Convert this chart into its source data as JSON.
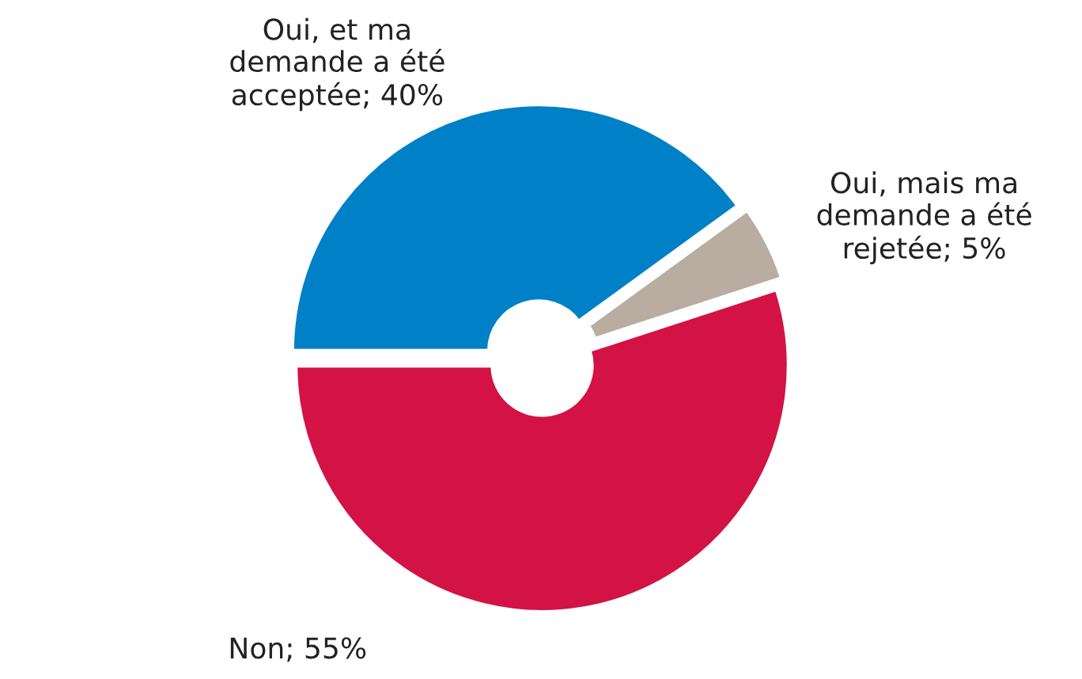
{
  "chart_data": {
    "type": "donut",
    "categories": [
      "Oui, et ma\ndemande a été\nacceptée",
      "Oui, mais ma\ndemande a été\nrejetée",
      "Non"
    ],
    "values": [
      40,
      5,
      55
    ],
    "value_labels": [
      "40%",
      "5%",
      "55%"
    ],
    "colors": [
      "#0080c6",
      "#b8ada0",
      "#d31245"
    ],
    "legend": false
  }
}
